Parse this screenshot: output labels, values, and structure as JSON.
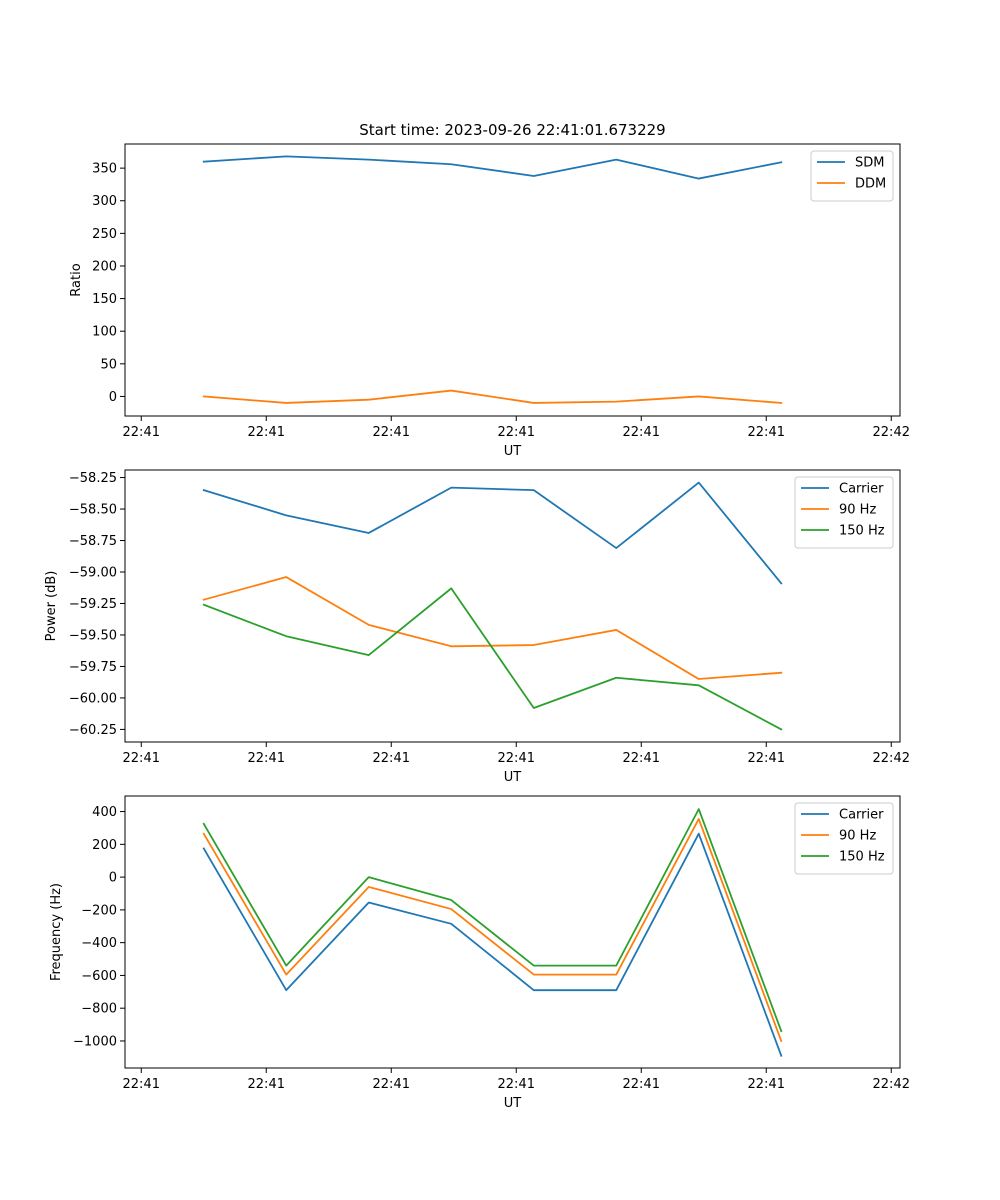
{
  "chart_data": [
    {
      "type": "line",
      "title": "Start time: 2023-09-26 22:41:01.673229",
      "xlabel": "UT",
      "ylabel": "Ratio",
      "x": [
        0.5,
        1.16,
        1.82,
        2.48,
        3.14,
        3.8,
        4.46,
        5.12
      ],
      "xlim": [
        -0.13,
        6.07
      ],
      "xticks": [
        0,
        1,
        2,
        3,
        4,
        5,
        6
      ],
      "xtick_labels": [
        "22:41",
        "22:41",
        "22:41",
        "22:41",
        "22:41",
        "22:41",
        "22:42"
      ],
      "ylim": [
        -30,
        387
      ],
      "yticks": [
        0,
        50,
        100,
        150,
        200,
        250,
        300,
        350
      ],
      "ytick_labels": [
        "0",
        "50",
        "100",
        "150",
        "200",
        "250",
        "300",
        "350"
      ],
      "legend_position": "top-right",
      "series": [
        {
          "name": "SDM",
          "color": "#1f77b4",
          "values": [
            360,
            368,
            363,
            356,
            338,
            363,
            334,
            359
          ]
        },
        {
          "name": "DDM",
          "color": "#ff7f0e",
          "values": [
            0,
            -10,
            -5,
            9,
            -10,
            -8,
            0,
            -10
          ]
        }
      ]
    },
    {
      "type": "line",
      "title": "",
      "xlabel": "UT",
      "ylabel": "Power (dB)",
      "x": [
        0.5,
        1.16,
        1.82,
        2.48,
        3.14,
        3.8,
        4.46,
        5.12
      ],
      "xlim": [
        -0.13,
        6.07
      ],
      "xticks": [
        0,
        1,
        2,
        3,
        4,
        5,
        6
      ],
      "xtick_labels": [
        "22:41",
        "22:41",
        "22:41",
        "22:41",
        "22:41",
        "22:41",
        "22:42"
      ],
      "ylim": [
        -60.35,
        -58.19
      ],
      "yticks": [
        -60.25,
        -60.0,
        -59.75,
        -59.5,
        -59.25,
        -59.0,
        -58.75,
        -58.5,
        -58.25
      ],
      "ytick_labels": [
        "−60.25",
        "−60.00",
        "−59.75",
        "−59.50",
        "−59.25",
        "−59.00",
        "−58.75",
        "−58.50",
        "−58.25"
      ],
      "legend_position": "top-right",
      "series": [
        {
          "name": "Carrier",
          "color": "#1f77b4",
          "values": [
            -58.35,
            -58.55,
            -58.69,
            -58.33,
            -58.35,
            -58.81,
            -58.29,
            -59.09
          ]
        },
        {
          "name": "90 Hz",
          "color": "#ff7f0e",
          "values": [
            -59.22,
            -59.04,
            -59.42,
            -59.59,
            -59.58,
            -59.46,
            -59.85,
            -59.8
          ]
        },
        {
          "name": "150 Hz",
          "color": "#2ca02c",
          "values": [
            -59.26,
            -59.51,
            -59.66,
            -59.13,
            -60.08,
            -59.84,
            -59.9,
            -60.25
          ]
        }
      ]
    },
    {
      "type": "line",
      "title": "",
      "xlabel": "UT",
      "ylabel": "Frequency (Hz)",
      "x": [
        0.5,
        1.16,
        1.82,
        2.48,
        3.14,
        3.8,
        4.46,
        5.12
      ],
      "xlim": [
        -0.13,
        6.07
      ],
      "xticks": [
        0,
        1,
        2,
        3,
        4,
        5,
        6
      ],
      "xtick_labels": [
        "22:41",
        "22:41",
        "22:41",
        "22:41",
        "22:41",
        "22:41",
        "22:42"
      ],
      "ylim": [
        -1165,
        495
      ],
      "yticks": [
        -1000,
        -800,
        -600,
        -400,
        -200,
        0,
        200,
        400
      ],
      "ytick_labels": [
        "−1000",
        "−800",
        "−600",
        "−400",
        "−200",
        "0",
        "200",
        "400"
      ],
      "legend_position": "top-right",
      "series": [
        {
          "name": "Carrier",
          "color": "#1f77b4",
          "values": [
            175,
            -690,
            -155,
            -285,
            -690,
            -690,
            265,
            -1090
          ]
        },
        {
          "name": "90 Hz",
          "color": "#ff7f0e",
          "values": [
            265,
            -595,
            -60,
            -195,
            -595,
            -595,
            355,
            -1000
          ]
        },
        {
          "name": "150 Hz",
          "color": "#2ca02c",
          "values": [
            325,
            -540,
            0,
            -140,
            -540,
            -540,
            415,
            -940
          ]
        }
      ]
    }
  ]
}
